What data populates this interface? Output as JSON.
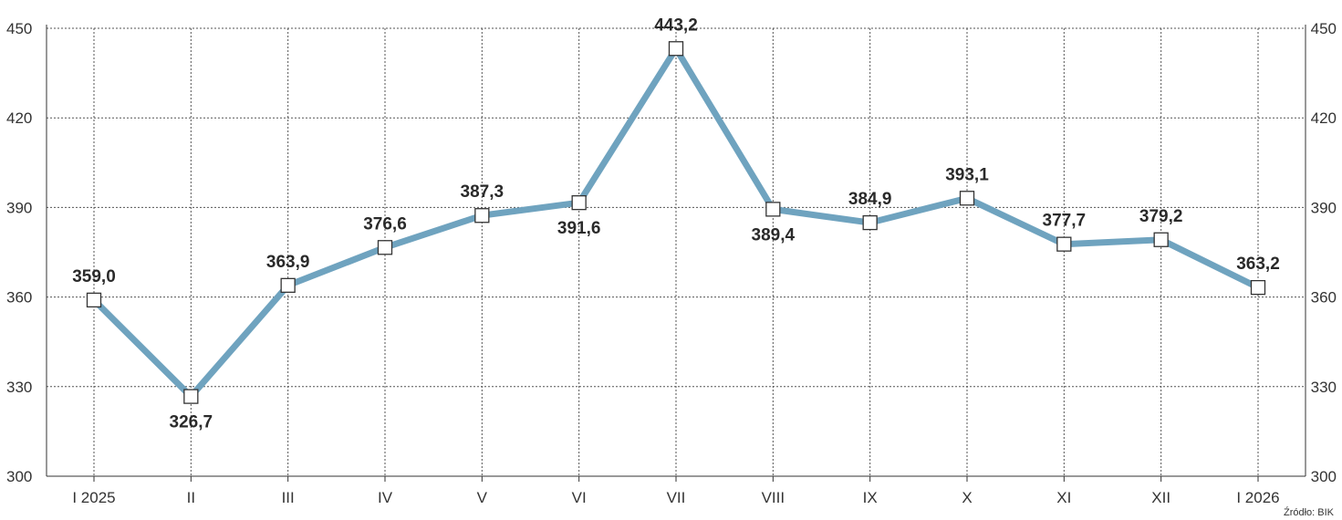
{
  "chart_data": {
    "type": "line",
    "categories": [
      "I 2025",
      "II",
      "III",
      "IV",
      "V",
      "VI",
      "VII",
      "VIII",
      "IX",
      "X",
      "XI",
      "XII",
      "I 2026"
    ],
    "series": [
      {
        "values": [
          359.0,
          326.7,
          363.9,
          376.6,
          387.3,
          391.6,
          443.2,
          389.4,
          384.9,
          393.1,
          377.7,
          379.2,
          363.2
        ],
        "labels": [
          "359,0",
          "326,7",
          "363,9",
          "376,6",
          "387,3",
          "391,6",
          "443,2",
          "389,4",
          "384,9",
          "393,1",
          "377,7",
          "379,2",
          "363,2"
        ],
        "color": "#6fa3bf"
      }
    ],
    "ylim": [
      300,
      450
    ],
    "yticks": [
      300,
      330,
      360,
      390,
      420,
      450
    ],
    "label_side": [
      "above",
      "below",
      "above",
      "above",
      "above",
      "below",
      "above",
      "below",
      "above",
      "above",
      "above",
      "above",
      "above"
    ],
    "grid": true,
    "grid_style": "dotted",
    "secondary_y_axis": true,
    "source": "Źródło: BIK"
  }
}
